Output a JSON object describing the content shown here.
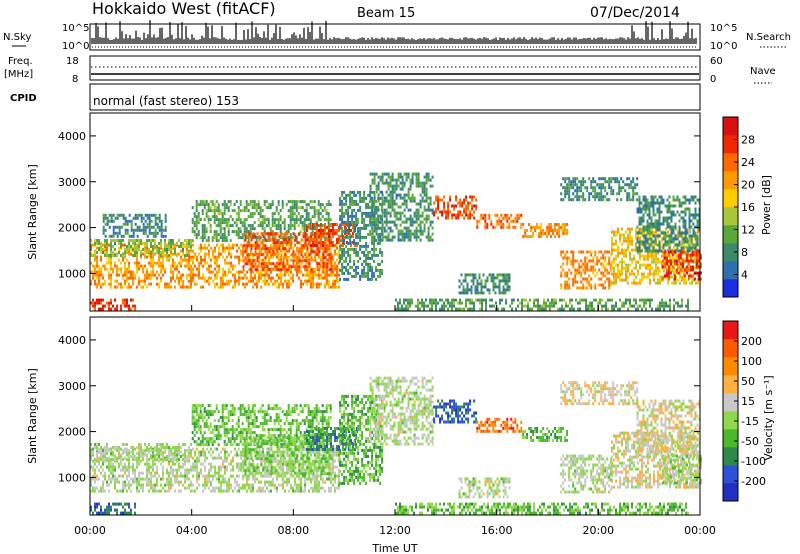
{
  "header": {
    "title": "Hokkaido West (fitACF)",
    "beam": "Beam 15",
    "date": "07/Dec/2014"
  },
  "noise_panel": {
    "label": "N.Sky",
    "left_ticks": [
      "10^5",
      "10^0"
    ],
    "right_ticks": [
      "10^5",
      "10^0"
    ],
    "right_label": "N.Search"
  },
  "freq_panel": {
    "label_1": "Freq.",
    "label_2": "[MHz]",
    "left_ticks": [
      "18",
      "8"
    ],
    "right_ticks": [
      "60",
      "0"
    ],
    "right_label": "Nave"
  },
  "cpid_panel": {
    "label": "CPID",
    "text": "normal (fast stereo) 153"
  },
  "chart_data": [
    {
      "type": "heatmap",
      "quantity": "Power",
      "ylabel": "Slant Range [km]",
      "ylim": [
        180,
        4500
      ],
      "yticks": [
        "4000",
        "3000",
        "2000",
        "1000"
      ],
      "xlim_hours": [
        0,
        24
      ],
      "colorbar": {
        "label": "Power [dB]",
        "range": [
          0,
          32
        ],
        "ticks": [
          "28",
          "24",
          "20",
          "16",
          "12",
          "8",
          "4"
        ],
        "colors": [
          "#1a2ee0",
          "#2f6fb0",
          "#3c8a6a",
          "#5aa83c",
          "#a8c83a",
          "#ffcc00",
          "#ff9a00",
          "#ff6a00",
          "#f02800",
          "#d81010"
        ]
      },
      "regions": [
        {
          "t": [
            0.0,
            9.8
          ],
          "r": [
            700,
            1650
          ],
          "value": 21
        },
        {
          "t": [
            0.0,
            4.0
          ],
          "r": [
            1400,
            1750
          ],
          "value": 13
        },
        {
          "t": [
            0.5,
            3.0
          ],
          "r": [
            1800,
            2300
          ],
          "value": 7
        },
        {
          "t": [
            4.0,
            9.5
          ],
          "r": [
            1700,
            2600
          ],
          "value": 10
        },
        {
          "t": [
            6.0,
            9.5
          ],
          "r": [
            1100,
            1900
          ],
          "value": 25
        },
        {
          "t": [
            8.5,
            10.5
          ],
          "r": [
            1600,
            2100
          ],
          "value": 26
        },
        {
          "t": [
            0.0,
            1.8
          ],
          "r": [
            200,
            450
          ],
          "value": 27
        },
        {
          "t": [
            9.8,
            11.5
          ],
          "r": [
            900,
            2800
          ],
          "value": 8
        },
        {
          "t": [
            11.0,
            13.5
          ],
          "r": [
            1700,
            3200
          ],
          "value": 9
        },
        {
          "t": [
            13.5,
            15.2
          ],
          "r": [
            2200,
            2700
          ],
          "value": 26
        },
        {
          "t": [
            15.2,
            17.0
          ],
          "r": [
            2000,
            2300
          ],
          "value": 24
        },
        {
          "t": [
            17.0,
            18.8
          ],
          "r": [
            1800,
            2100
          ],
          "value": 22
        },
        {
          "t": [
            18.5,
            20.5
          ],
          "r": [
            700,
            1500
          ],
          "value": 22
        },
        {
          "t": [
            20.5,
            23.9
          ],
          "r": [
            800,
            2000
          ],
          "value": 18
        },
        {
          "t": [
            12.0,
            23.5
          ],
          "r": [
            200,
            450
          ],
          "value": 10
        },
        {
          "t": [
            21.5,
            24.0
          ],
          "r": [
            1500,
            2700
          ],
          "value": 8
        },
        {
          "t": [
            14.5,
            16.5
          ],
          "r": [
            600,
            1000
          ],
          "value": 8
        },
        {
          "t": [
            22.5,
            24.0
          ],
          "r": [
            900,
            1500
          ],
          "value": 27
        },
        {
          "t": [
            18.5,
            21.5
          ],
          "r": [
            2600,
            3100
          ],
          "value": 8
        }
      ]
    },
    {
      "type": "heatmap",
      "quantity": "Velocity",
      "ylabel": "Slant Range [km]",
      "ylim": [
        180,
        4500
      ],
      "yticks": [
        "4000",
        "3000",
        "2000",
        "1000"
      ],
      "xlim_hours": [
        0,
        24
      ],
      "xticks": [
        "00:00",
        "04:00",
        "08:00",
        "12:00",
        "16:00",
        "20:00",
        "00:00"
      ],
      "xlabel": "Time UT",
      "colorbar": {
        "label": "Velocity [m s⁻¹]",
        "range": [
          -250,
          250
        ],
        "ticks": [
          "200",
          "100",
          "50",
          "15",
          "-15",
          "-50",
          "-100",
          "-200"
        ],
        "colors": [
          "#2030c0",
          "#3050d8",
          "#2f8a4a",
          "#4cb82e",
          "#8ed84a",
          "#c8c8c8",
          "#ffb040",
          "#ff8a00",
          "#ff5a00",
          "#e81818"
        ]
      },
      "regions": [
        {
          "t": [
            0.0,
            9.8
          ],
          "r": [
            700,
            1650
          ],
          "value": 0
        },
        {
          "t": [
            0.0,
            4.0
          ],
          "r": [
            1400,
            1750
          ],
          "value": 0
        },
        {
          "t": [
            4.0,
            9.5
          ],
          "r": [
            1700,
            2600
          ],
          "value": -60
        },
        {
          "t": [
            6.0,
            9.5
          ],
          "r": [
            1100,
            1900
          ],
          "value": -40
        },
        {
          "t": [
            8.5,
            10.5
          ],
          "r": [
            1600,
            2100
          ],
          "value": -120
        },
        {
          "t": [
            0.0,
            1.8
          ],
          "r": [
            200,
            450
          ],
          "value": -160
        },
        {
          "t": [
            9.8,
            11.5
          ],
          "r": [
            900,
            2800
          ],
          "value": -70
        },
        {
          "t": [
            11.0,
            13.5
          ],
          "r": [
            1700,
            3200
          ],
          "value": 0
        },
        {
          "t": [
            13.5,
            15.2
          ],
          "r": [
            2200,
            2700
          ],
          "value": -170
        },
        {
          "t": [
            15.2,
            17.0
          ],
          "r": [
            2000,
            2300
          ],
          "value": 160
        },
        {
          "t": [
            17.0,
            18.8
          ],
          "r": [
            1800,
            2100
          ],
          "value": -80
        },
        {
          "t": [
            18.5,
            20.5
          ],
          "r": [
            700,
            1500
          ],
          "value": 0
        },
        {
          "t": [
            20.5,
            23.9
          ],
          "r": [
            800,
            2000
          ],
          "value": 30
        },
        {
          "t": [
            12.0,
            23.5
          ],
          "r": [
            200,
            450
          ],
          "value": -60
        },
        {
          "t": [
            21.5,
            24.0
          ],
          "r": [
            1500,
            2700
          ],
          "value": 30
        },
        {
          "t": [
            14.5,
            16.5
          ],
          "r": [
            600,
            1000
          ],
          "value": 0
        },
        {
          "t": [
            22.5,
            24.0
          ],
          "r": [
            900,
            1500
          ],
          "value": -20
        },
        {
          "t": [
            18.5,
            21.5
          ],
          "r": [
            2600,
            3100
          ],
          "value": 40
        }
      ]
    }
  ]
}
